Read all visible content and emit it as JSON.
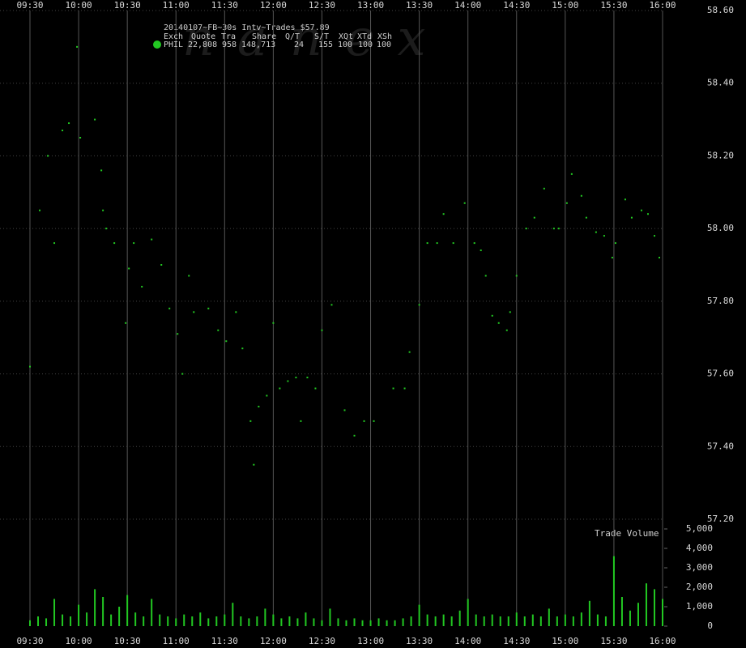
{
  "chart_data": {
    "type": "scatter",
    "title": "20140107~FB~30s Intv~Trades $57.89",
    "watermark": "nanex",
    "legend": {
      "columns": [
        "Exch",
        "Quote",
        "Tra",
        "Share",
        "Q/T",
        "S/T",
        "XQt",
        "XTd",
        "XSh"
      ],
      "row": [
        "PHIL",
        "22,808",
        "958",
        "148,713",
        "24",
        "155",
        "100",
        "100",
        "100"
      ]
    },
    "xlim": [
      0,
      390
    ],
    "xticks": [
      {
        "value": 0,
        "label": "09:30"
      },
      {
        "value": 30,
        "label": "10:00"
      },
      {
        "value": 60,
        "label": "10:30"
      },
      {
        "value": 90,
        "label": "11:00"
      },
      {
        "value": 120,
        "label": "11:30"
      },
      {
        "value": 150,
        "label": "12:00"
      },
      {
        "value": 180,
        "label": "12:30"
      },
      {
        "value": 210,
        "label": "13:00"
      },
      {
        "value": 240,
        "label": "13:30"
      },
      {
        "value": 270,
        "label": "14:00"
      },
      {
        "value": 300,
        "label": "14:30"
      },
      {
        "value": 330,
        "label": "15:00"
      },
      {
        "value": 360,
        "label": "15:30"
      },
      {
        "value": 390,
        "label": "16:00"
      }
    ],
    "ylim": [
      57.2,
      58.6
    ],
    "yticks": [
      {
        "value": 57.2,
        "label": "57.20"
      },
      {
        "value": 57.4,
        "label": "57.40"
      },
      {
        "value": 57.6,
        "label": "57.60"
      },
      {
        "value": 57.8,
        "label": "57.80"
      },
      {
        "value": 58.0,
        "label": "58.00"
      },
      {
        "value": 58.2,
        "label": "58.20"
      },
      {
        "value": 58.4,
        "label": "58.40"
      },
      {
        "value": 58.6,
        "label": "58.60"
      }
    ],
    "grid": true,
    "series": [
      {
        "color": "#22c822",
        "x": [
          0,
          6,
          11,
          15,
          20,
          24,
          29,
          31,
          40,
          44,
          45,
          47,
          52,
          59,
          61,
          64,
          69,
          75,
          81,
          86,
          91,
          94,
          98,
          101,
          110,
          116,
          121,
          127,
          131,
          136,
          138,
          141,
          146,
          150,
          154,
          159,
          164,
          167,
          171,
          176,
          180,
          186,
          194,
          200,
          206,
          212,
          224,
          231,
          234,
          240,
          245,
          251,
          255,
          261,
          268,
          274,
          278,
          281,
          285,
          289,
          294,
          296,
          300,
          306,
          311,
          317,
          323,
          326,
          331,
          334,
          340,
          343,
          349,
          354,
          359,
          361,
          367,
          371,
          377,
          381,
          385,
          388
        ],
        "values": [
          57.62,
          58.05,
          58.2,
          57.96,
          58.27,
          58.29,
          58.5,
          58.25,
          58.3,
          58.16,
          58.05,
          58.0,
          57.96,
          57.74,
          57.89,
          57.96,
          57.84,
          57.97,
          57.9,
          57.78,
          57.71,
          57.6,
          57.87,
          57.77,
          57.78,
          57.72,
          57.69,
          57.77,
          57.67,
          57.47,
          57.35,
          57.51,
          57.54,
          57.74,
          57.56,
          57.58,
          57.59,
          57.47,
          57.59,
          57.56,
          57.72,
          57.79,
          57.5,
          57.43,
          57.47,
          57.47,
          57.56,
          57.56,
          57.66,
          57.79,
          57.96,
          57.96,
          58.04,
          57.96,
          58.07,
          57.96,
          57.94,
          57.87,
          57.76,
          57.74,
          57.72,
          57.77,
          57.87,
          58.0,
          58.03,
          58.11,
          58.0,
          58.0,
          58.07,
          58.15,
          58.09,
          58.03,
          57.99,
          57.98,
          57.92,
          57.96,
          58.08,
          58.03,
          58.05,
          58.04,
          57.98,
          57.92
        ]
      }
    ],
    "volume": {
      "type": "bar",
      "label": "Trade Volume",
      "color": "#22c822",
      "ylim": [
        0,
        5000
      ],
      "yticks": [
        {
          "value": 5000,
          "label": "5,000"
        },
        {
          "value": 4000,
          "label": "4,000"
        },
        {
          "value": 3000,
          "label": "3,000"
        },
        {
          "value": 2000,
          "label": "2,000"
        },
        {
          "value": 1000,
          "label": "1,000"
        },
        0
      ],
      "x": [
        0,
        5,
        10,
        15,
        20,
        25,
        30,
        35,
        40,
        45,
        50,
        55,
        60,
        65,
        70,
        75,
        80,
        85,
        90,
        95,
        100,
        105,
        110,
        115,
        120,
        125,
        130,
        135,
        140,
        145,
        150,
        155,
        160,
        165,
        170,
        175,
        180,
        185,
        190,
        195,
        200,
        205,
        210,
        215,
        220,
        225,
        230,
        235,
        240,
        245,
        250,
        255,
        260,
        265,
        270,
        275,
        280,
        285,
        290,
        295,
        300,
        305,
        310,
        315,
        320,
        325,
        330,
        335,
        340,
        345,
        350,
        355,
        360,
        365,
        370,
        375,
        380,
        385,
        390
      ],
      "values": [
        300,
        500,
        400,
        1400,
        600,
        500,
        1100,
        700,
        1900,
        1500,
        600,
        1000,
        1600,
        700,
        500,
        1400,
        600,
        500,
        400,
        600,
        500,
        700,
        400,
        500,
        600,
        1200,
        500,
        400,
        500,
        900,
        600,
        400,
        500,
        400,
        700,
        400,
        300,
        900,
        400,
        300,
        400,
        300,
        300,
        400,
        300,
        300,
        400,
        500,
        1100,
        600,
        500,
        600,
        500,
        800,
        1400,
        600,
        500,
        600,
        500,
        500,
        700,
        500,
        600,
        500,
        900,
        500,
        600,
        500,
        700,
        1300,
        600,
        500,
        3600,
        1500,
        800,
        1200,
        2200,
        1900,
        1400
      ]
    }
  }
}
